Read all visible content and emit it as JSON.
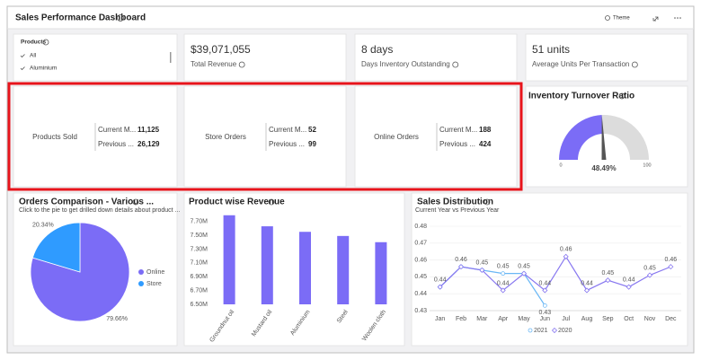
{
  "header": {
    "title": "Sales Performance Dashboard",
    "actions": [
      "Theme"
    ]
  },
  "filter": {
    "title": "Products",
    "options": [
      "All",
      "Aluminium"
    ]
  },
  "kpis": [
    {
      "value": "$39,071,055",
      "label": "Total Revenue"
    },
    {
      "value": "8 days",
      "label": "Days Inventory Outstanding"
    },
    {
      "value": "51 units",
      "label": "Average Units Per Transaction"
    }
  ],
  "orders": [
    {
      "title": "Products Sold",
      "rows": [
        {
          "label": "Current M...",
          "value": "11,125"
        },
        {
          "label": "Previous ...",
          "value": "26,129"
        }
      ]
    },
    {
      "title": "Store Orders",
      "rows": [
        {
          "label": "Current M...",
          "value": "52"
        },
        {
          "label": "Previous ...",
          "value": "99"
        }
      ]
    },
    {
      "title": "Online Orders",
      "rows": [
        {
          "label": "Current M...",
          "value": "188"
        },
        {
          "label": "Previous ...",
          "value": "424"
        }
      ]
    }
  ],
  "chart_data": [
    {
      "type": "gauge",
      "title": "Inventory Turnover Ratio",
      "value": 48.49,
      "value_label": "48.49%",
      "xlim": [
        0,
        100
      ],
      "xticks": [
        0,
        100
      ],
      "color": "#7b6cf6",
      "track_color": "#dcdcdc"
    },
    {
      "type": "pie",
      "title": "Orders Comparison - Various ...",
      "subtitle": "Click to the pie to get drilled down details about product ...",
      "categories": [
        "Online",
        "Store"
      ],
      "values": [
        79.66,
        20.34
      ],
      "value_labels": [
        "79.66%",
        "20.34%"
      ],
      "colors": [
        "#7b6cf6",
        "#2f9bff"
      ],
      "legend": "right"
    },
    {
      "type": "bar",
      "title": "Product wise Revenue",
      "categories": [
        "Groundnut oil",
        "Mustard oil",
        "Aluminium",
        "Steel",
        "Woolen cloth"
      ],
      "values": [
        7790000,
        7630000,
        7550000,
        7490000,
        7400000
      ],
      "color": "#7b6cf6",
      "ylim": [
        6500000,
        7800000
      ],
      "yticks": [
        {
          "value": 6500000,
          "label": "6.50M"
        },
        {
          "value": 6700000,
          "label": "6.70M"
        },
        {
          "value": 6900000,
          "label": "6.90M"
        },
        {
          "value": 7100000,
          "label": "7.10M"
        },
        {
          "value": 7300000,
          "label": "7.30M"
        },
        {
          "value": 7500000,
          "label": "7.50M"
        },
        {
          "value": 7700000,
          "label": "7.70M"
        }
      ],
      "grid": false
    },
    {
      "type": "line",
      "title": "Sales Distribution",
      "subtitle": "Current Year vs Previous Year",
      "categories": [
        "Jan",
        "Feb",
        "Mar",
        "Apr",
        "May",
        "Jun",
        "Jul",
        "Aug",
        "Sep",
        "Oct",
        "Nov",
        "Dec"
      ],
      "series": [
        {
          "name": "2021",
          "color": "#6ab7f5",
          "marker": "circle",
          "values": [
            0.444,
            0.456,
            0.454,
            0.452,
            0.452,
            0.433,
            null,
            null,
            null,
            null,
            null,
            null
          ],
          "value_labels": [
            "0.44",
            "0.46",
            "0.45",
            "0.45",
            "0.45",
            "0.43",
            null,
            null,
            null,
            null,
            null,
            null
          ]
        },
        {
          "name": "2020",
          "color": "#8878f0",
          "marker": "diamond",
          "values": [
            0.444,
            0.456,
            0.454,
            0.442,
            0.452,
            0.442,
            0.462,
            0.442,
            0.448,
            0.444,
            0.451,
            0.456
          ],
          "value_labels": [
            null,
            null,
            null,
            "0.44",
            null,
            "0.44",
            "0.46",
            "0.44",
            "0.45",
            "0.44",
            "0.45",
            "0.46"
          ]
        }
      ],
      "ylim": [
        0.43,
        0.48
      ],
      "yticks": [
        0.43,
        0.44,
        0.45,
        0.46,
        0.47,
        0.48
      ],
      "grid": true,
      "legend": "bottom"
    }
  ]
}
